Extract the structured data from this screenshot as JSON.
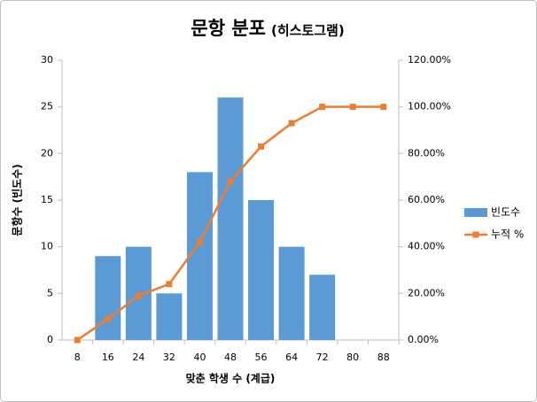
{
  "chart_data": {
    "type": "bar",
    "title": "문항 분포",
    "subtitle": "(히스토그램)",
    "x_label": "맞춘 학생 수 (계급)",
    "y_label": "문항수 (빈도수)",
    "categories": [
      "8",
      "16",
      "24",
      "32",
      "40",
      "48",
      "56",
      "64",
      "72",
      "80",
      "88"
    ],
    "series": [
      {
        "name": "빈도수",
        "type": "bar",
        "color": "#5b9bd5",
        "values": [
          0,
          9,
          10,
          5,
          18,
          26,
          15,
          10,
          7,
          0,
          0
        ]
      },
      {
        "name": "누적 %",
        "type": "line",
        "axis": "y2",
        "color": "#ed7d31",
        "values": [
          0,
          9,
          19,
          24,
          42,
          68,
          83,
          93,
          100,
          100,
          100
        ]
      }
    ],
    "ylim": [
      0,
      30
    ],
    "yticks": [
      0,
      5,
      10,
      15,
      20,
      25,
      30
    ],
    "y2lim": [
      0,
      120
    ],
    "y2ticks": [
      {
        "value": 0,
        "label": "0.00%"
      },
      {
        "value": 20,
        "label": "20.00%"
      },
      {
        "value": 40,
        "label": "40.00%"
      },
      {
        "value": 60,
        "label": "60.00%"
      },
      {
        "value": 80,
        "label": "80.00%"
      },
      {
        "value": 100,
        "label": "100.00%"
      },
      {
        "value": 120,
        "label": "120.00%"
      }
    ],
    "grid": false,
    "legend": "right"
  }
}
